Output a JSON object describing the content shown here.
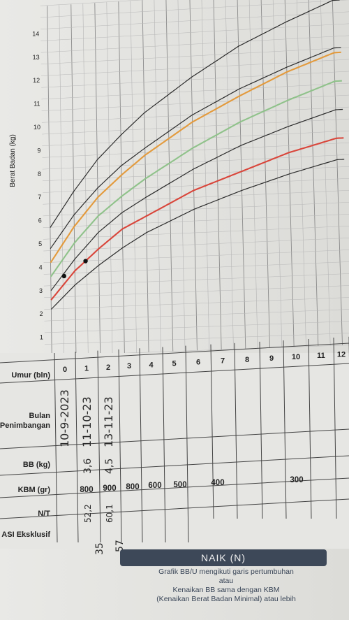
{
  "chart_data": {
    "type": "line",
    "ylabel": "Berat Badan (kg)",
    "y_ticks": [
      "1",
      "2",
      "3",
      "4",
      "5",
      "6",
      "7",
      "8",
      "9",
      "10",
      "11",
      "12",
      "13",
      "14"
    ],
    "ylim": [
      0,
      14.5
    ],
    "xlim": [
      0,
      12
    ],
    "x_ticks": [
      "0",
      "1",
      "2",
      "3",
      "4",
      "5",
      "6",
      "7",
      "8",
      "9",
      "10",
      "11",
      "12"
    ],
    "grid": true,
    "line_colors": {
      "outer": "#2b2b2b",
      "orange": "#e39a3c",
      "green": "#8fc28a",
      "red": "#d9453a"
    },
    "series": [
      {
        "color": "outer",
        "x": [
          0,
          1,
          2,
          3,
          4,
          6,
          8,
          10,
          12
        ],
        "y": [
          4.8,
          6.2,
          7.3,
          8.2,
          8.9,
          10.2,
          11.2,
          12.0,
          12.7
        ]
      },
      {
        "color": "outer",
        "x": [
          0,
          1,
          2,
          3,
          4,
          6,
          8,
          10,
          12
        ],
        "y": [
          5.7,
          7.2,
          8.5,
          9.5,
          10.4,
          11.8,
          13.0,
          13.9,
          14.7
        ]
      },
      {
        "color": "orange",
        "x": [
          0,
          1,
          2,
          3,
          4,
          6,
          8,
          10,
          12
        ],
        "y": [
          4.2,
          5.7,
          6.9,
          7.8,
          8.6,
          9.9,
          10.9,
          11.8,
          12.5
        ]
      },
      {
        "color": "green",
        "x": [
          0,
          1,
          2,
          3,
          4,
          6,
          8,
          10,
          12
        ],
        "y": [
          3.6,
          5.0,
          6.1,
          6.9,
          7.6,
          8.8,
          9.8,
          10.6,
          11.3
        ]
      },
      {
        "color": "outer",
        "x": [
          0,
          1,
          2,
          3,
          4,
          6,
          8,
          10,
          12
        ],
        "y": [
          3.0,
          4.3,
          5.4,
          6.2,
          6.8,
          7.9,
          8.8,
          9.5,
          10.1
        ]
      },
      {
        "color": "red",
        "x": [
          0,
          1,
          2,
          3,
          4,
          6,
          8,
          10,
          12
        ],
        "y": [
          2.6,
          3.8,
          4.7,
          5.5,
          6.0,
          7.0,
          7.7,
          8.4,
          8.9
        ]
      },
      {
        "color": "outer",
        "x": [
          0,
          1,
          2,
          3,
          4,
          6,
          8,
          10,
          12
        ],
        "y": [
          2.2,
          3.2,
          4.0,
          4.7,
          5.3,
          6.2,
          6.9,
          7.5,
          8.0
        ]
      }
    ],
    "points": [
      {
        "x": 0.55,
        "y": 3.6
      },
      {
        "x": 1.45,
        "y": 4.2
      }
    ]
  },
  "table": {
    "row_labels": {
      "umur": "Umur (bln)",
      "bulan": "Bulan",
      "penimbangan": "Penimbangan",
      "bb": "BB (kg)",
      "kbm": "KBM (gr)",
      "nt": "N/T",
      "asi": "ASI Eksklusif"
    },
    "months": [
      "0",
      "1",
      "2",
      "3",
      "4",
      "5",
      "6",
      "7",
      "8",
      "9",
      "10",
      "11",
      "12"
    ],
    "dates": [
      "10-9-2023",
      "11-10-23",
      "13-11-23"
    ],
    "bb": [
      "3,6",
      "4,5"
    ],
    "nt": [
      "52,2",
      "60,1"
    ],
    "kbm": [
      "800",
      "900",
      "800",
      "600",
      "500",
      "400",
      "300"
    ],
    "below": [
      "35",
      "57"
    ]
  },
  "legend": {
    "title": "NAIK (N)",
    "lines": [
      "Grafik BB/U mengikuti garis pertumbuhan",
      "atau",
      "Kenaikan BB sama dengan KBM",
      "(Kenaikan Berat Badan Minimal) atau lebih"
    ]
  }
}
